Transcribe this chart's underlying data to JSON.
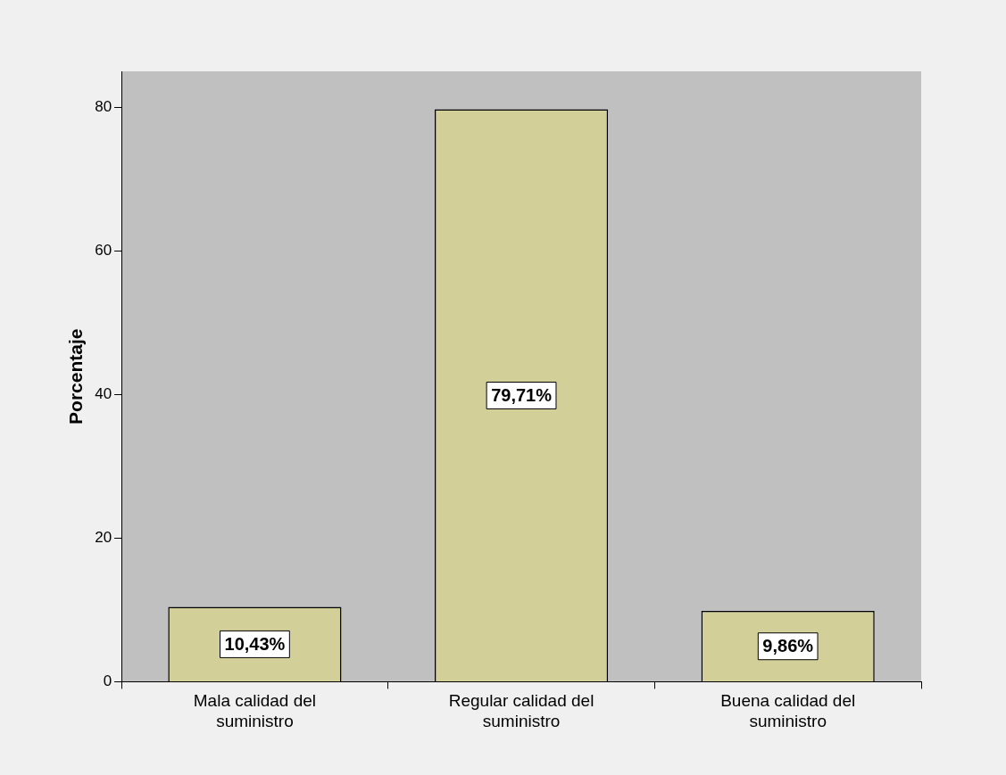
{
  "chart_data": {
    "type": "bar",
    "ylabel": "Porcentaje",
    "categories": [
      "Mala calidad del suministro",
      "Regular calidad del suministro",
      "Buena calidad del suministro"
    ],
    "values": [
      10.43,
      79.71,
      9.86
    ],
    "value_labels": [
      "10,43%",
      "79,71%",
      "9,86%"
    ],
    "color": "#d3cf99",
    "ylim": [
      0,
      85
    ],
    "yticks": [
      0,
      20,
      40,
      60,
      80
    ],
    "grid": false,
    "legend": false
  }
}
